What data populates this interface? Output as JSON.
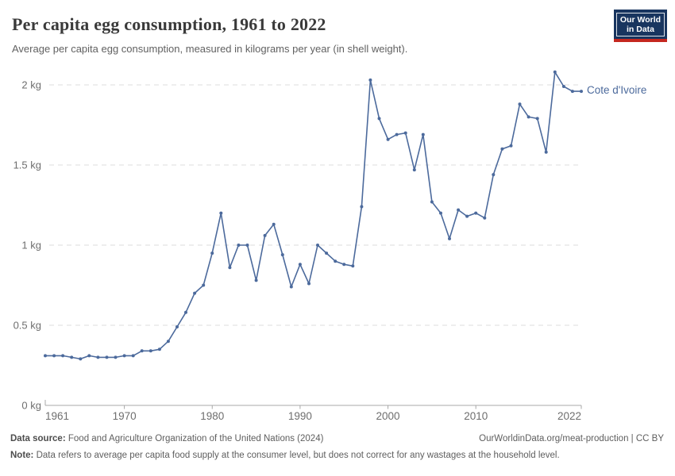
{
  "header": {
    "title": "Per capita egg consumption, 1961 to 2022",
    "subtitle": "Average per capita egg consumption, measured in kilograms per year (in shell weight).",
    "logo": {
      "line1": "Our World",
      "line2": "in Data",
      "bg_color": "#18355f",
      "bar_color": "#c5271f"
    }
  },
  "chart_data": {
    "type": "line",
    "title": "Per capita egg consumption, 1961 to 2022",
    "ylabel": "kilograms per year (in shell weight)",
    "xlabel": "",
    "xlim": [
      1961,
      2022
    ],
    "ylim": [
      0,
      2.1
    ],
    "grid": "horizontal dashed",
    "legend_position": "end-of-line label",
    "x_ticks": [
      1961,
      1970,
      1980,
      1990,
      2000,
      2010,
      2022
    ],
    "y_ticks": [
      {
        "value": 0,
        "label": "0 kg"
      },
      {
        "value": 0.5,
        "label": "0.5 kg"
      },
      {
        "value": 1,
        "label": "1 kg"
      },
      {
        "value": 1.5,
        "label": "1.5 kg"
      },
      {
        "value": 2,
        "label": "2 kg"
      }
    ],
    "series": [
      {
        "name": "Cote d'Ivoire",
        "color": "#4C6A9C",
        "x": [
          1961,
          1962,
          1963,
          1964,
          1965,
          1966,
          1967,
          1968,
          1969,
          1970,
          1971,
          1972,
          1973,
          1974,
          1975,
          1976,
          1977,
          1978,
          1979,
          1980,
          1981,
          1982,
          1983,
          1984,
          1985,
          1986,
          1987,
          1988,
          1989,
          1990,
          1991,
          1992,
          1993,
          1994,
          1995,
          1996,
          1997,
          1998,
          1999,
          2000,
          2001,
          2002,
          2003,
          2004,
          2005,
          2006,
          2007,
          2008,
          2009,
          2010,
          2011,
          2012,
          2013,
          2014,
          2015,
          2016,
          2017,
          2018,
          2019,
          2020,
          2021,
          2022
        ],
        "values": [
          0.31,
          0.31,
          0.31,
          0.3,
          0.29,
          0.31,
          0.3,
          0.3,
          0.3,
          0.31,
          0.31,
          0.34,
          0.34,
          0.35,
          0.4,
          0.49,
          0.58,
          0.7,
          0.75,
          0.95,
          1.2,
          0.86,
          1.0,
          1.0,
          0.78,
          1.06,
          1.13,
          0.94,
          0.74,
          0.88,
          0.76,
          1.0,
          0.95,
          0.9,
          0.88,
          0.87,
          1.24,
          2.03,
          1.79,
          1.66,
          1.69,
          1.7,
          1.47,
          1.69,
          1.27,
          1.2,
          1.04,
          1.22,
          1.18,
          1.2,
          1.17,
          1.44,
          1.6,
          1.62,
          1.88,
          1.8,
          1.79,
          1.58,
          2.08,
          1.99,
          1.96,
          1.96
        ]
      }
    ],
    "colors": {
      "gridline": "#dedede",
      "axis": "#a8a8a8",
      "tick_label": "#6e6e6e"
    }
  },
  "footer": {
    "source_label": "Data source:",
    "source_text": "Food and Agriculture Organization of the United Nations (2024)",
    "link_text": "OurWorldinData.org/meat-production | CC BY",
    "note_label": "Note:",
    "note_text": "Data refers to average per capita food supply at the consumer level, but does not correct for any wastages at the household level."
  }
}
